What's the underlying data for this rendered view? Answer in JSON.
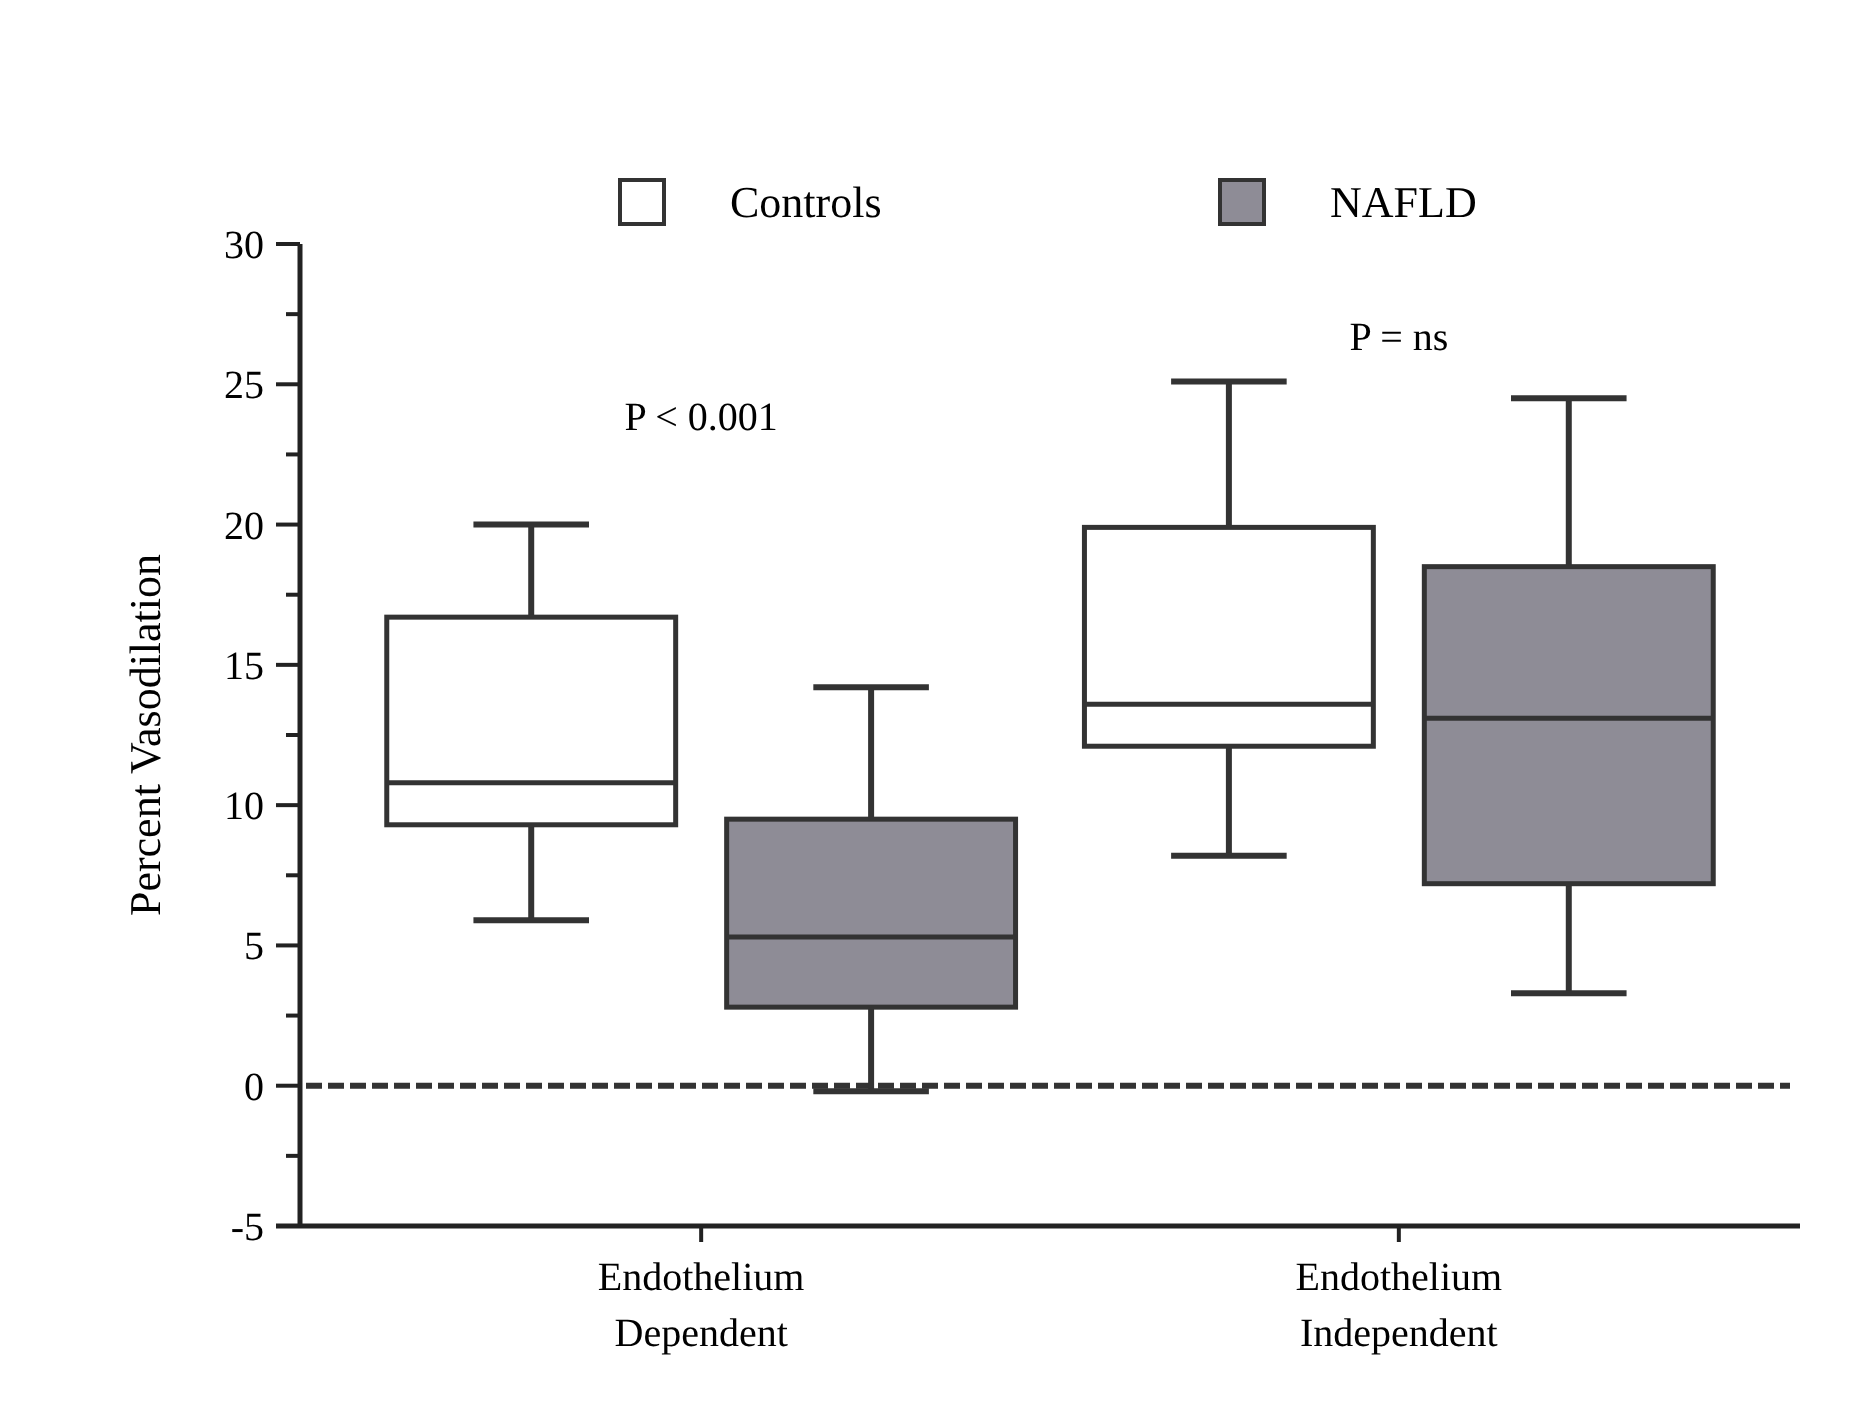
{
  "chart_data": {
    "type": "box",
    "ylabel": "Percent Vasodilation",
    "categories": [
      "Endothelium Dependent",
      "Endothelium Independent"
    ],
    "series": [
      {
        "name": "Controls",
        "color": "#ffffff",
        "boxes": [
          {
            "low": 5.9,
            "q1": 9.3,
            "median": 10.8,
            "q3": 16.7,
            "high": 20.0
          },
          {
            "low": 8.2,
            "q1": 12.1,
            "median": 13.6,
            "q3": 19.9,
            "high": 25.1
          }
        ]
      },
      {
        "name": "NAFLD",
        "color": "#8e8c96",
        "boxes": [
          {
            "low": -0.2,
            "q1": 2.8,
            "median": 5.3,
            "q3": 9.5,
            "high": 14.2
          },
          {
            "low": 3.3,
            "q1": 7.2,
            "median": 13.1,
            "q3": 18.5,
            "high": 24.5
          }
        ]
      }
    ],
    "ylim": [
      -5,
      30
    ],
    "yticks": [
      -5,
      {
        "value": -2.5,
        "label": null
      },
      0,
      {
        "value": 2.5,
        "label": null
      },
      5,
      {
        "value": 7.5,
        "label": null
      },
      10,
      {
        "value": 12.5,
        "label": null
      },
      15,
      {
        "value": 17.5,
        "label": null
      },
      20,
      {
        "value": 22.5,
        "label": null
      },
      25,
      {
        "value": 27.5,
        "label": null
      },
      30
    ],
    "ref_lines": [
      {
        "axis": "y",
        "value": 0,
        "line_style": "dashed",
        "color": "#333333"
      }
    ],
    "annotations": [
      "P < 0.001",
      "P = ns"
    ],
    "legend": "top"
  }
}
